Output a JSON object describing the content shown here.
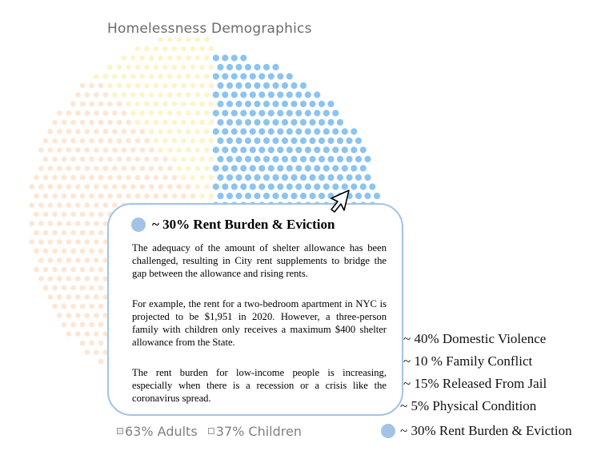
{
  "chart_data": {
    "type": "dot-pie",
    "title": "Homelessness  Demographics",
    "segments": [
      {
        "name": "Adults",
        "percent": 63,
        "color": "#fde6d3"
      },
      {
        "name": "Children",
        "percent": 37,
        "color": "#fdf4c8"
      },
      {
        "name": "Rent Burden & Eviction",
        "percent": 30,
        "color": "#8cc4ef"
      }
    ],
    "legend": [
      {
        "label": "63% Adults",
        "swatch": "#e8e8e8"
      },
      {
        "label": "37% Children",
        "swatch": "#ffffff"
      }
    ],
    "causes": [
      {
        "label": "~ 40% Domestic Violence"
      },
      {
        "label": "~ 10 % Family Conflict"
      },
      {
        "label": "~ 15% Released From Jail"
      },
      {
        "label": "~ 5% Physical Condition"
      },
      {
        "label": "~ 30% Rent Burden & Eviction",
        "marker_color": "#a3c3e6"
      }
    ]
  },
  "tooltip": {
    "title": "~ 30% Rent Burden & Eviction",
    "paragraphs": [
      "The adequacy of the amount of shelter allowance has been challenged, resulting in City rent supplements to bridge the gap between the allowance and rising rents.",
      "For example, the rent for a two-bedroom apartment in NYC is projected to be $1,951 in 2020. However, a three-person family with children only receives a maximum $400 shelter allowance from the State.",
      "The rent burden for low-income people is increasing, especially when there is a recession or a crisis like the coronavirus spread."
    ]
  },
  "icons": {
    "cursor": "mouse-pointer-icon"
  }
}
